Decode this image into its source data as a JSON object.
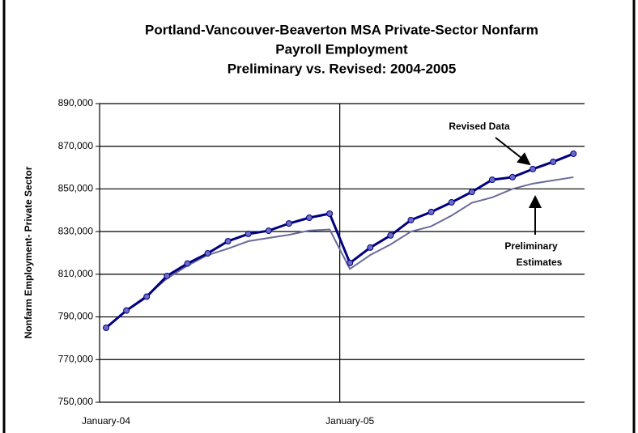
{
  "chart_data": {
    "type": "line",
    "title": [
      "Portland-Vancouver-Beaverton MSA Private-Sector Nonfarm",
      "Payroll Employment",
      "Preliminary vs. Revised: 2004-2005"
    ],
    "y_label": "Nonfarm Employment- Private Sector",
    "categories": [
      "January-04",
      null,
      null,
      null,
      null,
      null,
      null,
      null,
      null,
      null,
      null,
      null,
      "January-05",
      null,
      null,
      null,
      null,
      null,
      null,
      null,
      null,
      null,
      null,
      null
    ],
    "series": [
      {
        "name": "Preliminary Estimates",
        "color": "#6b6b9b",
        "values": [
          785000,
          793000,
          800000,
          808000,
          814000,
          819000,
          822000,
          825500,
          827000,
          828500,
          830500,
          831000,
          812500,
          819000,
          824000,
          830000,
          832500,
          837500,
          843500,
          846000,
          850000,
          852500,
          854000,
          855500
        ]
      },
      {
        "name": "Revised Data",
        "color": "#000080",
        "marker_color": "#6d6dc7",
        "values": [
          784900,
          793000,
          799500,
          809200,
          815000,
          819800,
          825500,
          828900,
          830400,
          833800,
          836500,
          838400,
          815300,
          822500,
          828200,
          835400,
          839200,
          843700,
          848600,
          854300,
          855500,
          859300,
          862700,
          866500
        ]
      }
    ],
    "annotations": [
      "Revised Data",
      "Preliminary",
      "Estimates"
    ],
    "ylim": [
      750000,
      890000
    ],
    "yticks": [
      {
        "value": 750000,
        "label": "750,000"
      },
      {
        "value": 770000,
        "label": "770,000"
      },
      {
        "value": 790000,
        "label": "790,000"
      },
      {
        "value": 810000,
        "label": "810,000"
      },
      {
        "value": 830000,
        "label": "830,000"
      },
      {
        "value": 850000,
        "label": "850,000"
      },
      {
        "value": 870000,
        "label": "870,000"
      },
      {
        "value": 890000,
        "label": "890,000"
      }
    ],
    "grid": true
  }
}
